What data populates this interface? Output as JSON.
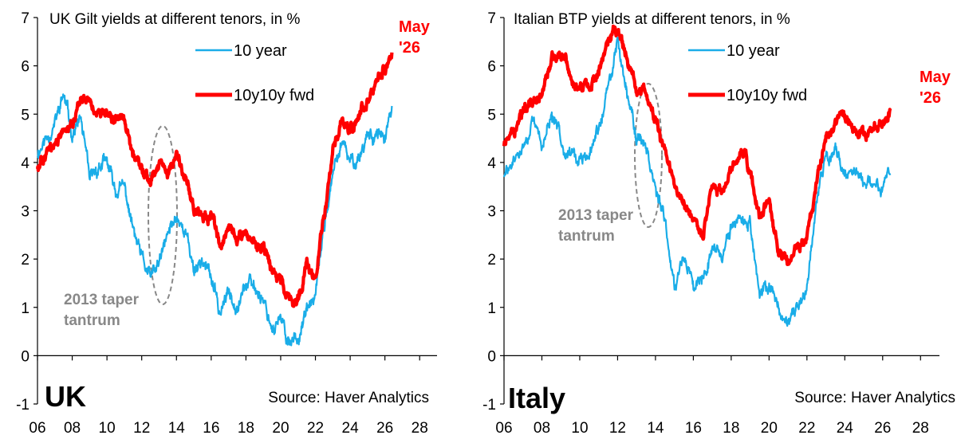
{
  "colors": {
    "ten_year": "#1AADE8",
    "fwd": "#FF0000",
    "annotation": "#888888"
  },
  "chart_data": [
    {
      "type": "line",
      "title": "UK Gilt yields at different tenors, in %",
      "panel_label": "UK",
      "source": "Source: Haver Analytics",
      "xlim": [
        2006,
        2029
      ],
      "ylim": [
        -1,
        7
      ],
      "x_ticks": [
        2006,
        2008,
        2010,
        2012,
        2014,
        2016,
        2018,
        2020,
        2022,
        2024,
        2026,
        2028
      ],
      "x_tick_labels": [
        "06",
        "08",
        "10",
        "12",
        "14",
        "16",
        "18",
        "20",
        "22",
        "24",
        "26",
        "28"
      ],
      "y_ticks": [
        -1,
        0,
        1,
        2,
        3,
        4,
        5,
        6,
        7
      ],
      "legend": [
        "10 year",
        "10y10y fwd"
      ],
      "annotation": [
        "2013 taper",
        "tantrum"
      ],
      "end_label": [
        "May",
        "'26"
      ],
      "series": [
        {
          "name": "10 year",
          "x": [
            2006.0,
            2006.5,
            2007.0,
            2007.5,
            2008.0,
            2008.5,
            2009.0,
            2009.5,
            2010.0,
            2010.5,
            2011.0,
            2011.5,
            2012.0,
            2012.5,
            2013.0,
            2013.5,
            2014.0,
            2014.5,
            2015.0,
            2015.5,
            2016.0,
            2016.5,
            2017.0,
            2017.5,
            2018.0,
            2018.5,
            2019.0,
            2019.5,
            2020.0,
            2020.5,
            2021.0,
            2021.5,
            2022.0,
            2022.5,
            2023.0,
            2023.5,
            2024.0,
            2024.5,
            2025.0,
            2025.5,
            2026.0,
            2026.4
          ],
          "y": [
            4.2,
            4.5,
            4.8,
            5.4,
            4.6,
            4.9,
            3.6,
            3.9,
            4.0,
            3.4,
            3.5,
            2.6,
            2.0,
            1.6,
            1.9,
            2.5,
            2.9,
            2.6,
            1.8,
            2.0,
            1.6,
            0.9,
            1.3,
            1.1,
            1.5,
            1.4,
            1.2,
            0.6,
            0.7,
            0.3,
            0.4,
            0.9,
            1.2,
            2.7,
            3.7,
            4.4,
            4.0,
            4.1,
            4.6,
            4.6,
            4.5,
            5.0
          ]
        },
        {
          "name": "10y10y fwd",
          "x": [
            2006.0,
            2006.5,
            2007.0,
            2007.5,
            2008.0,
            2008.5,
            2009.0,
            2009.5,
            2010.0,
            2010.5,
            2011.0,
            2011.5,
            2012.0,
            2012.5,
            2013.0,
            2013.5,
            2014.0,
            2014.5,
            2015.0,
            2015.5,
            2016.0,
            2016.5,
            2017.0,
            2017.5,
            2018.0,
            2018.5,
            2019.0,
            2019.5,
            2020.0,
            2020.5,
            2021.0,
            2021.5,
            2022.0,
            2022.5,
            2023.0,
            2023.5,
            2024.0,
            2024.5,
            2025.0,
            2025.5,
            2026.0,
            2026.4
          ],
          "y": [
            3.9,
            4.2,
            4.4,
            4.6,
            4.8,
            5.3,
            5.2,
            5.0,
            5.0,
            4.9,
            4.8,
            4.2,
            3.8,
            3.6,
            4.0,
            3.8,
            4.1,
            3.7,
            3.1,
            2.9,
            2.9,
            2.3,
            2.6,
            2.4,
            2.5,
            2.3,
            2.3,
            1.8,
            1.6,
            1.1,
            1.2,
            1.9,
            1.5,
            2.9,
            4.2,
            4.8,
            4.6,
            5.0,
            5.3,
            5.6,
            6.0,
            6.2
          ]
        }
      ]
    },
    {
      "type": "line",
      "title": "Italian BTP yields at different tenors, in %",
      "panel_label": "Italy",
      "source": "Source: Haver Analytics",
      "xlim": [
        2006,
        2029
      ],
      "ylim": [
        -1,
        7
      ],
      "x_ticks": [
        2006,
        2008,
        2010,
        2012,
        2014,
        2016,
        2018,
        2020,
        2022,
        2024,
        2026,
        2028
      ],
      "x_tick_labels": [
        "06",
        "08",
        "10",
        "12",
        "14",
        "16",
        "18",
        "20",
        "22",
        "24",
        "26",
        "28"
      ],
      "y_ticks": [
        -1,
        0,
        1,
        2,
        3,
        4,
        5,
        6,
        7
      ],
      "legend": [
        "10 year",
        "10y10y fwd"
      ],
      "annotation": [
        "2013 taper",
        "tantrum"
      ],
      "end_label": [
        "May",
        "'26"
      ],
      "series": [
        {
          "name": "10 year",
          "x": [
            2006.0,
            2006.5,
            2007.0,
            2007.5,
            2008.0,
            2008.5,
            2009.0,
            2009.5,
            2010.0,
            2010.5,
            2011.0,
            2011.5,
            2012.0,
            2012.5,
            2013.0,
            2013.5,
            2014.0,
            2014.5,
            2015.0,
            2015.5,
            2016.0,
            2016.5,
            2017.0,
            2017.5,
            2018.0,
            2018.5,
            2019.0,
            2019.5,
            2020.0,
            2020.5,
            2021.0,
            2021.5,
            2022.0,
            2022.5,
            2023.0,
            2023.5,
            2024.0,
            2024.5,
            2025.0,
            2025.5,
            2026.0,
            2026.4
          ],
          "y": [
            3.7,
            4.0,
            4.3,
            4.8,
            4.4,
            4.9,
            4.5,
            4.2,
            4.0,
            4.1,
            4.7,
            5.5,
            6.5,
            5.5,
            4.5,
            4.4,
            3.5,
            2.7,
            1.5,
            2.1,
            1.5,
            1.7,
            2.3,
            2.1,
            2.6,
            2.9,
            2.7,
            1.2,
            1.5,
            1.0,
            0.6,
            0.9,
            1.5,
            3.2,
            4.2,
            4.2,
            3.8,
            3.8,
            3.6,
            3.6,
            3.5,
            3.8
          ]
        },
        {
          "name": "10y10y fwd",
          "x": [
            2006.0,
            2006.5,
            2007.0,
            2007.5,
            2008.0,
            2008.5,
            2009.0,
            2009.5,
            2010.0,
            2010.5,
            2011.0,
            2011.5,
            2012.0,
            2012.5,
            2013.0,
            2013.5,
            2014.0,
            2014.5,
            2015.0,
            2015.5,
            2016.0,
            2016.5,
            2017.0,
            2017.5,
            2018.0,
            2018.5,
            2019.0,
            2019.5,
            2020.0,
            2020.5,
            2021.0,
            2021.5,
            2022.0,
            2022.5,
            2023.0,
            2023.5,
            2024.0,
            2024.5,
            2025.0,
            2025.5,
            2026.0,
            2026.4
          ],
          "y": [
            4.4,
            4.6,
            5.0,
            5.3,
            5.4,
            6.1,
            6.3,
            5.8,
            5.5,
            5.6,
            5.9,
            6.6,
            6.8,
            6.2,
            5.6,
            5.4,
            4.8,
            4.2,
            3.5,
            3.2,
            2.8,
            2.4,
            3.5,
            3.4,
            3.8,
            4.3,
            3.8,
            2.9,
            3.2,
            2.1,
            1.9,
            2.2,
            2.4,
            3.6,
            4.5,
            4.8,
            5.0,
            4.7,
            4.6,
            4.7,
            4.8,
            5.0
          ]
        }
      ]
    }
  ]
}
